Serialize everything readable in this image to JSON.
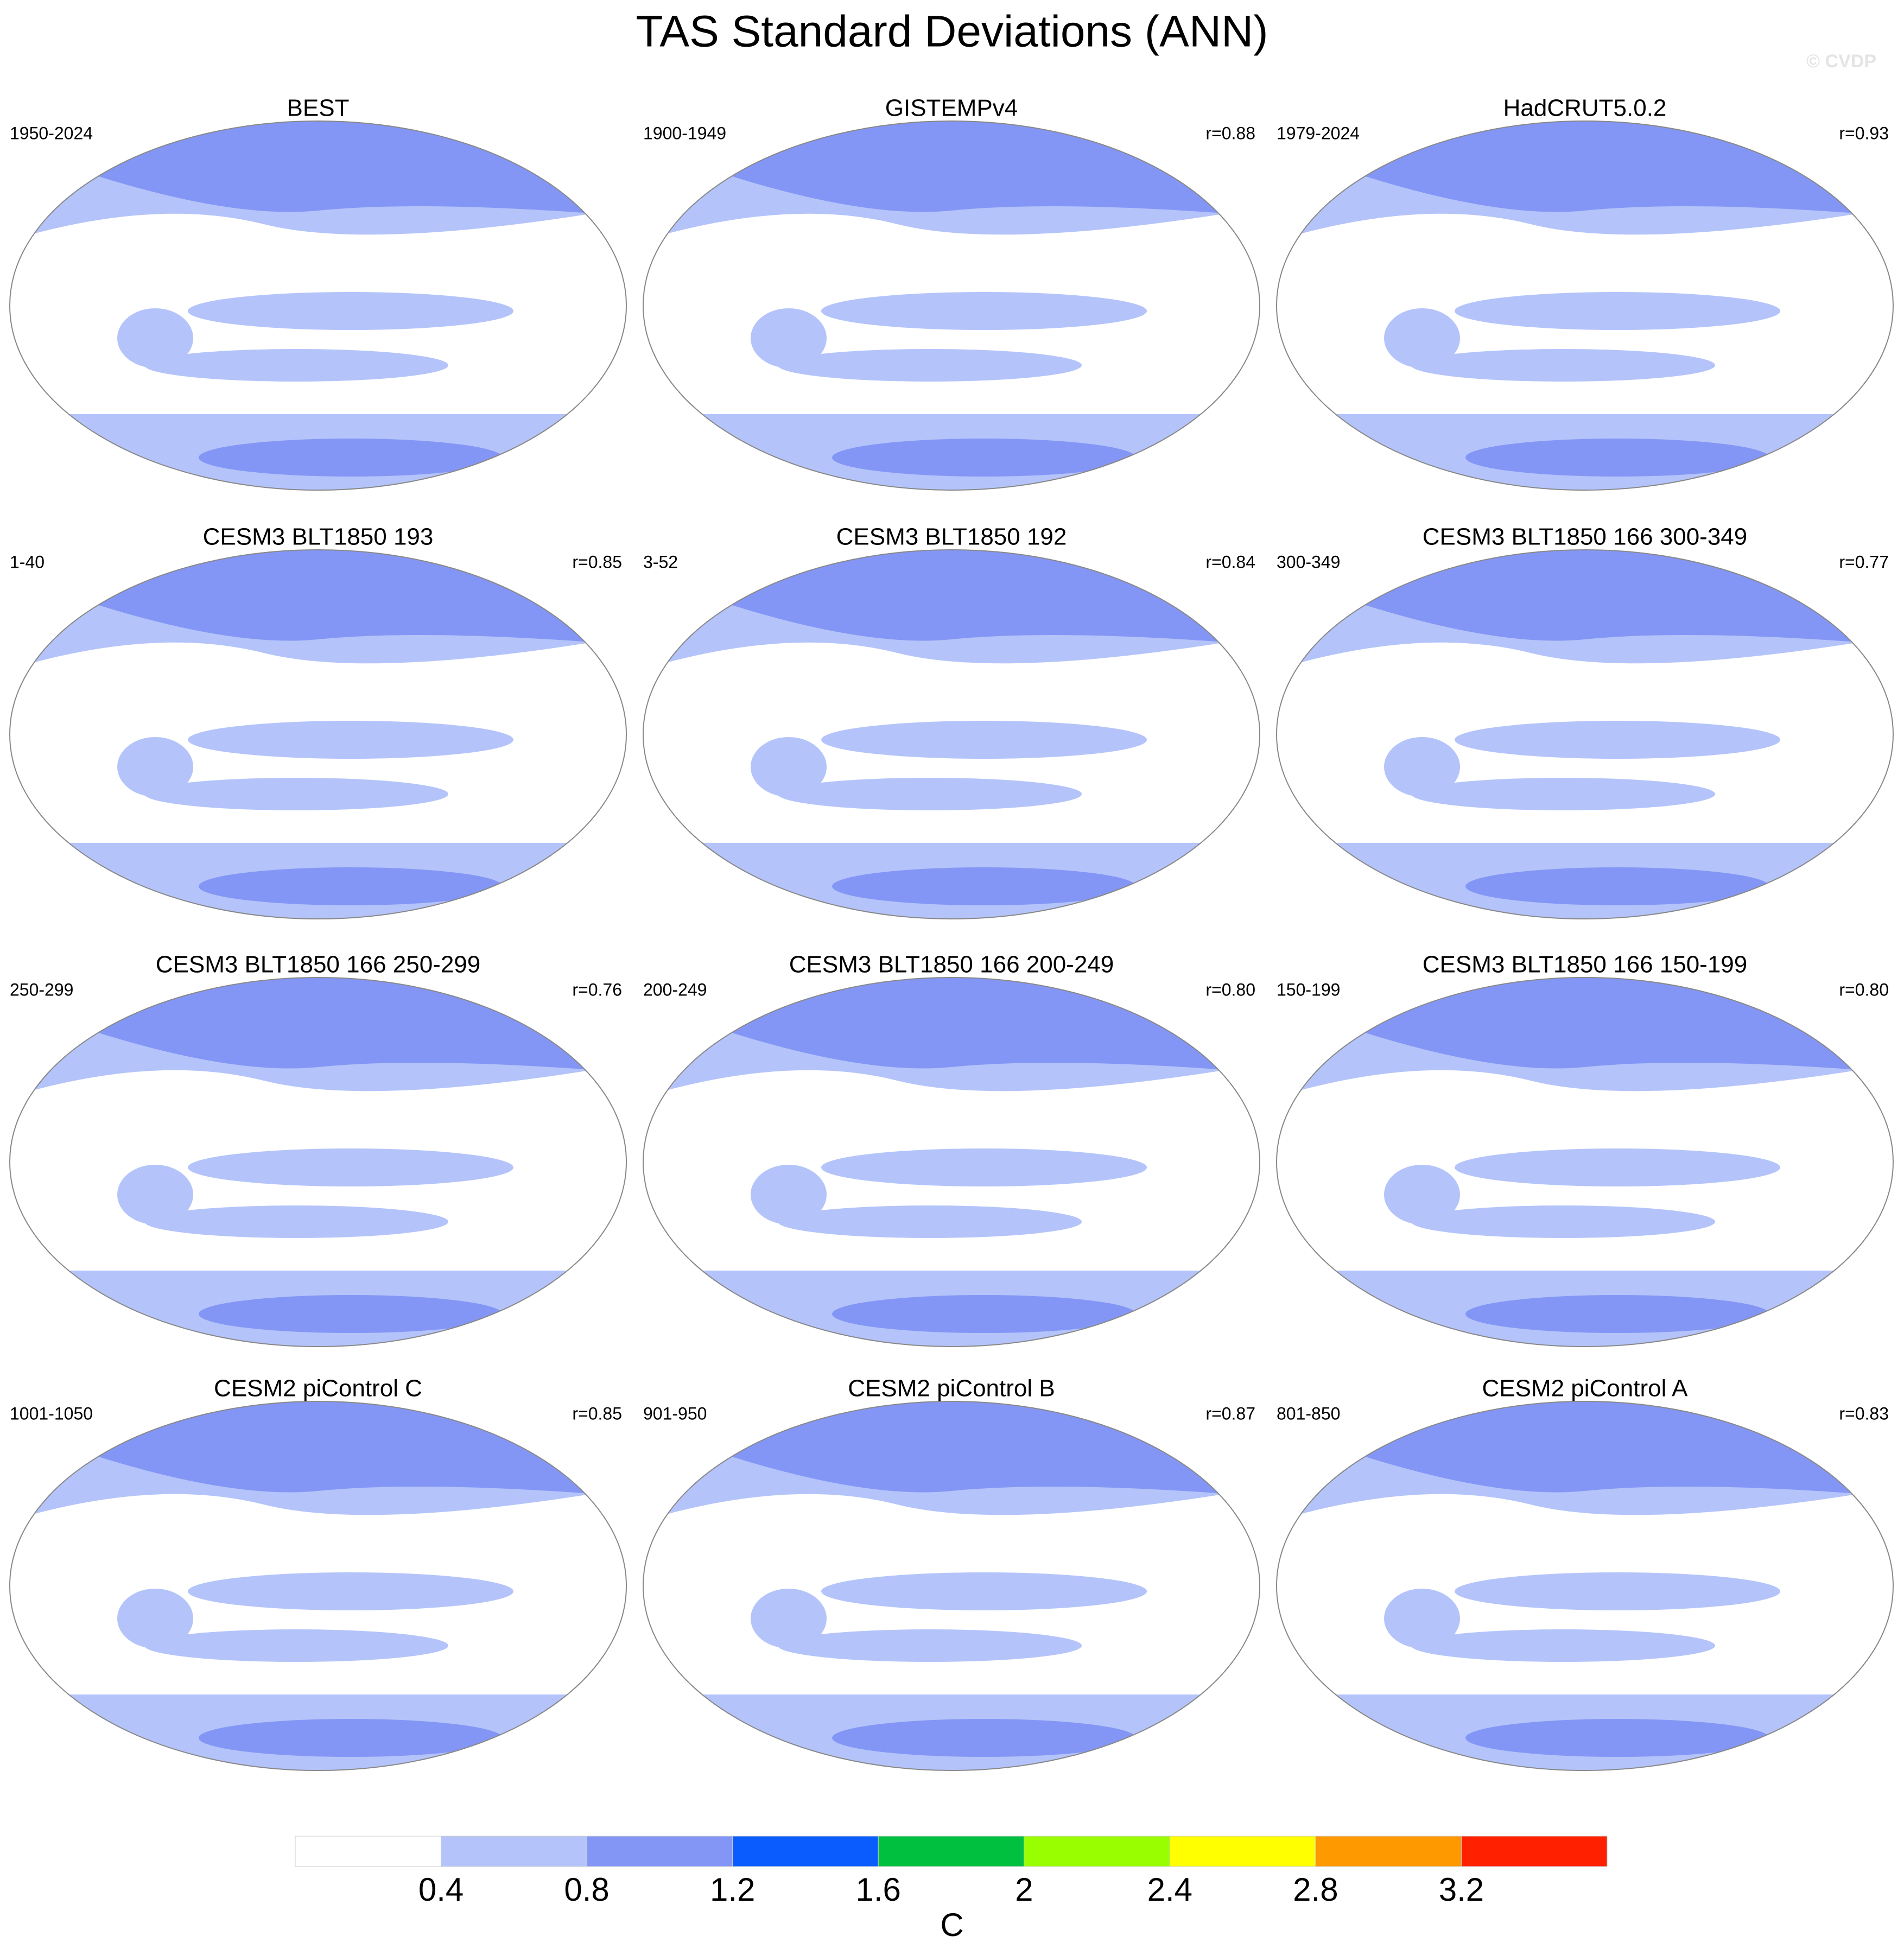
{
  "title": "TAS Standard Deviations (ANN)",
  "watermark": "© CVDP",
  "panels": [
    {
      "title": "BEST",
      "left": "1950-2024"
    },
    {
      "title": "GISTEMPv4",
      "left": "1900-1949",
      "right": "r=0.88"
    },
    {
      "title": "HadCRUT5.0.2",
      "left": "1979-2024",
      "right": "r=0.93"
    },
    {
      "title": "CESM3 BLT1850 193",
      "left": "1-40",
      "right": "r=0.85"
    },
    {
      "title": "CESM3 BLT1850 192",
      "left": "3-52",
      "right": "r=0.84"
    },
    {
      "title": "CESM3 BLT1850 166 300-349",
      "left": "300-349",
      "right": "r=0.77"
    },
    {
      "title": "CESM3 BLT1850 166 250-299",
      "left": "250-299",
      "right": "r=0.76"
    },
    {
      "title": "CESM3 BLT1850 166 200-249",
      "left": "200-249",
      "right": "r=0.80"
    },
    {
      "title": "CESM3 BLT1850 166 150-199",
      "left": "150-199",
      "right": "r=0.80"
    },
    {
      "title": "CESM2 piControl C",
      "left": "1001-1050",
      "right": "r=0.85"
    },
    {
      "title": "CESM2 piControl B",
      "left": "901-950",
      "right": "r=0.87"
    },
    {
      "title": "CESM2 piControl A",
      "left": "801-850",
      "right": "r=0.83"
    }
  ],
  "colorbar": {
    "levels": [
      0.4,
      0.8,
      1.2,
      1.6,
      2,
      2.4,
      2.8,
      3.2
    ],
    "colors": [
      "#ffffff",
      "#b4c4fa",
      "#8496f5",
      "#0a5cff",
      "#00c040",
      "#99ff00",
      "#ffff00",
      "#ff9900",
      "#ff2000"
    ],
    "label": "C"
  }
}
